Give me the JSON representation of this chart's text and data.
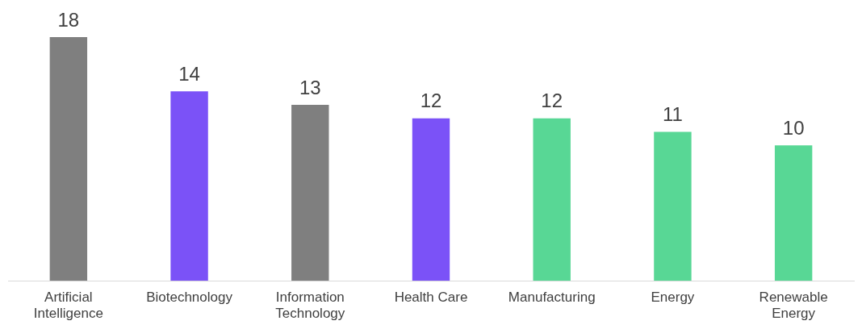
{
  "chart_data": {
    "type": "bar",
    "categories": [
      "Artificial Intelligence",
      "Biotechnology",
      "Information Technology",
      "Health Care",
      "Manufacturing",
      "Energy",
      "Renewable Energy"
    ],
    "values": [
      18,
      14,
      13,
      12,
      12,
      11,
      10
    ],
    "colors": [
      "#7f7f7f",
      "#7b52f7",
      "#7f7f7f",
      "#7b52f7",
      "#58d795",
      "#58d795",
      "#58d795"
    ],
    "data_labels": true
  }
}
